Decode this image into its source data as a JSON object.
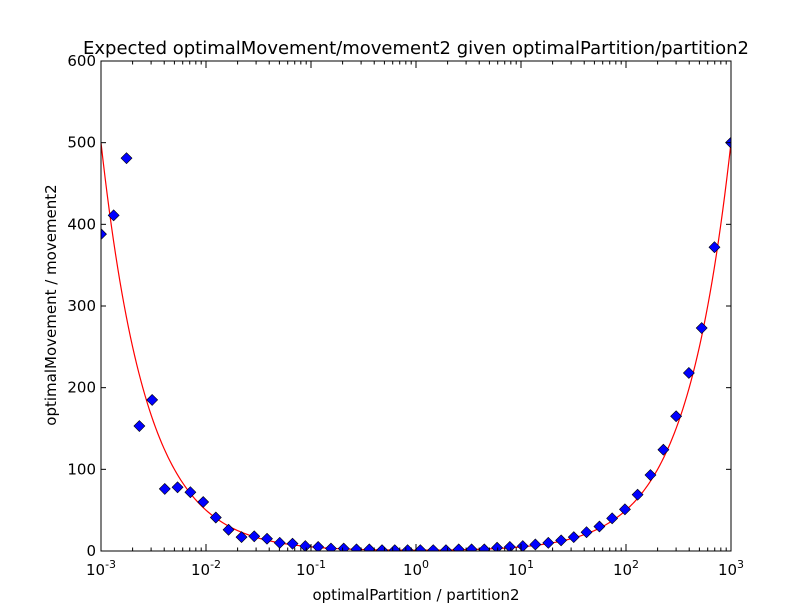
{
  "chart_data": {
    "type": "scatter",
    "title": "Expected optimalMovement/movement2 given optimalPartition/partition2",
    "xlabel": "optimalPartition / partition2",
    "ylabel": "optimalMovement / movement2",
    "xscale": "log",
    "xlim": [
      0.001,
      1000
    ],
    "ylim": [
      0,
      600
    ],
    "x_ticks": [
      {
        "base": "10",
        "exp": "-3"
      },
      {
        "base": "10",
        "exp": "-2"
      },
      {
        "base": "10",
        "exp": "-1"
      },
      {
        "base": "10",
        "exp": "0"
      },
      {
        "base": "10",
        "exp": "1"
      },
      {
        "base": "10",
        "exp": "2"
      },
      {
        "base": "10",
        "exp": "3"
      }
    ],
    "y_ticks": [
      "0",
      "100",
      "200",
      "300",
      "400",
      "500",
      "600"
    ],
    "grid": false,
    "legend": "none",
    "series": [
      {
        "kind": "markers",
        "marker": "diamond",
        "color": "#0000ff",
        "points": [
          [
            0.001,
            388
          ],
          [
            0.00132,
            411
          ],
          [
            0.00175,
            481
          ],
          [
            0.00232,
            153
          ],
          [
            0.00307,
            185
          ],
          [
            0.00405,
            76
          ],
          [
            0.00536,
            78
          ],
          [
            0.0071,
            72
          ],
          [
            0.0094,
            60
          ],
          [
            0.0124,
            41
          ],
          [
            0.0164,
            26
          ],
          [
            0.0218,
            17
          ],
          [
            0.0288,
            18
          ],
          [
            0.0381,
            15
          ],
          [
            0.0504,
            10
          ],
          [
            0.0667,
            9
          ],
          [
            0.0883,
            6
          ],
          [
            0.117,
            5
          ],
          [
            0.155,
            3
          ],
          [
            0.205,
            3
          ],
          [
            0.271,
            2
          ],
          [
            0.359,
            2
          ],
          [
            0.475,
            1
          ],
          [
            0.628,
            1
          ],
          [
            0.832,
            1
          ],
          [
            1.1,
            1
          ],
          [
            1.46,
            1
          ],
          [
            1.93,
            1
          ],
          [
            2.55,
            2
          ],
          [
            3.38,
            2
          ],
          [
            4.47,
            2
          ],
          [
            5.92,
            4
          ],
          [
            7.83,
            5
          ],
          [
            10.4,
            6
          ],
          [
            13.7,
            8
          ],
          [
            18.2,
            10
          ],
          [
            24.1,
            13
          ],
          [
            31.8,
            17
          ],
          [
            42.1,
            23
          ],
          [
            55.8,
            30
          ],
          [
            73.8,
            40
          ],
          [
            97.7,
            51
          ],
          [
            129,
            69
          ],
          [
            171,
            93
          ],
          [
            227,
            124
          ],
          [
            300,
            165
          ],
          [
            397,
            218
          ],
          [
            526,
            273
          ],
          [
            696,
            372
          ],
          [
            1000,
            500
          ]
        ]
      },
      {
        "kind": "line",
        "color": "#ff0000",
        "formula": "y = 0.5 * (r + 1/r)",
        "points": [
          [
            0.001,
            500
          ],
          [
            0.002,
            250
          ],
          [
            0.004,
            125
          ],
          [
            0.01,
            50
          ],
          [
            0.02,
            25
          ],
          [
            0.05,
            10
          ],
          [
            0.1,
            5
          ],
          [
            0.2,
            2.6
          ],
          [
            0.5,
            1.25
          ],
          [
            1,
            1
          ],
          [
            2,
            1.25
          ],
          [
            5,
            2.6
          ],
          [
            10,
            5
          ],
          [
            20,
            10
          ],
          [
            50,
            25
          ],
          [
            100,
            50
          ],
          [
            250,
            125
          ],
          [
            500,
            250
          ],
          [
            1000,
            500
          ]
        ]
      }
    ]
  }
}
